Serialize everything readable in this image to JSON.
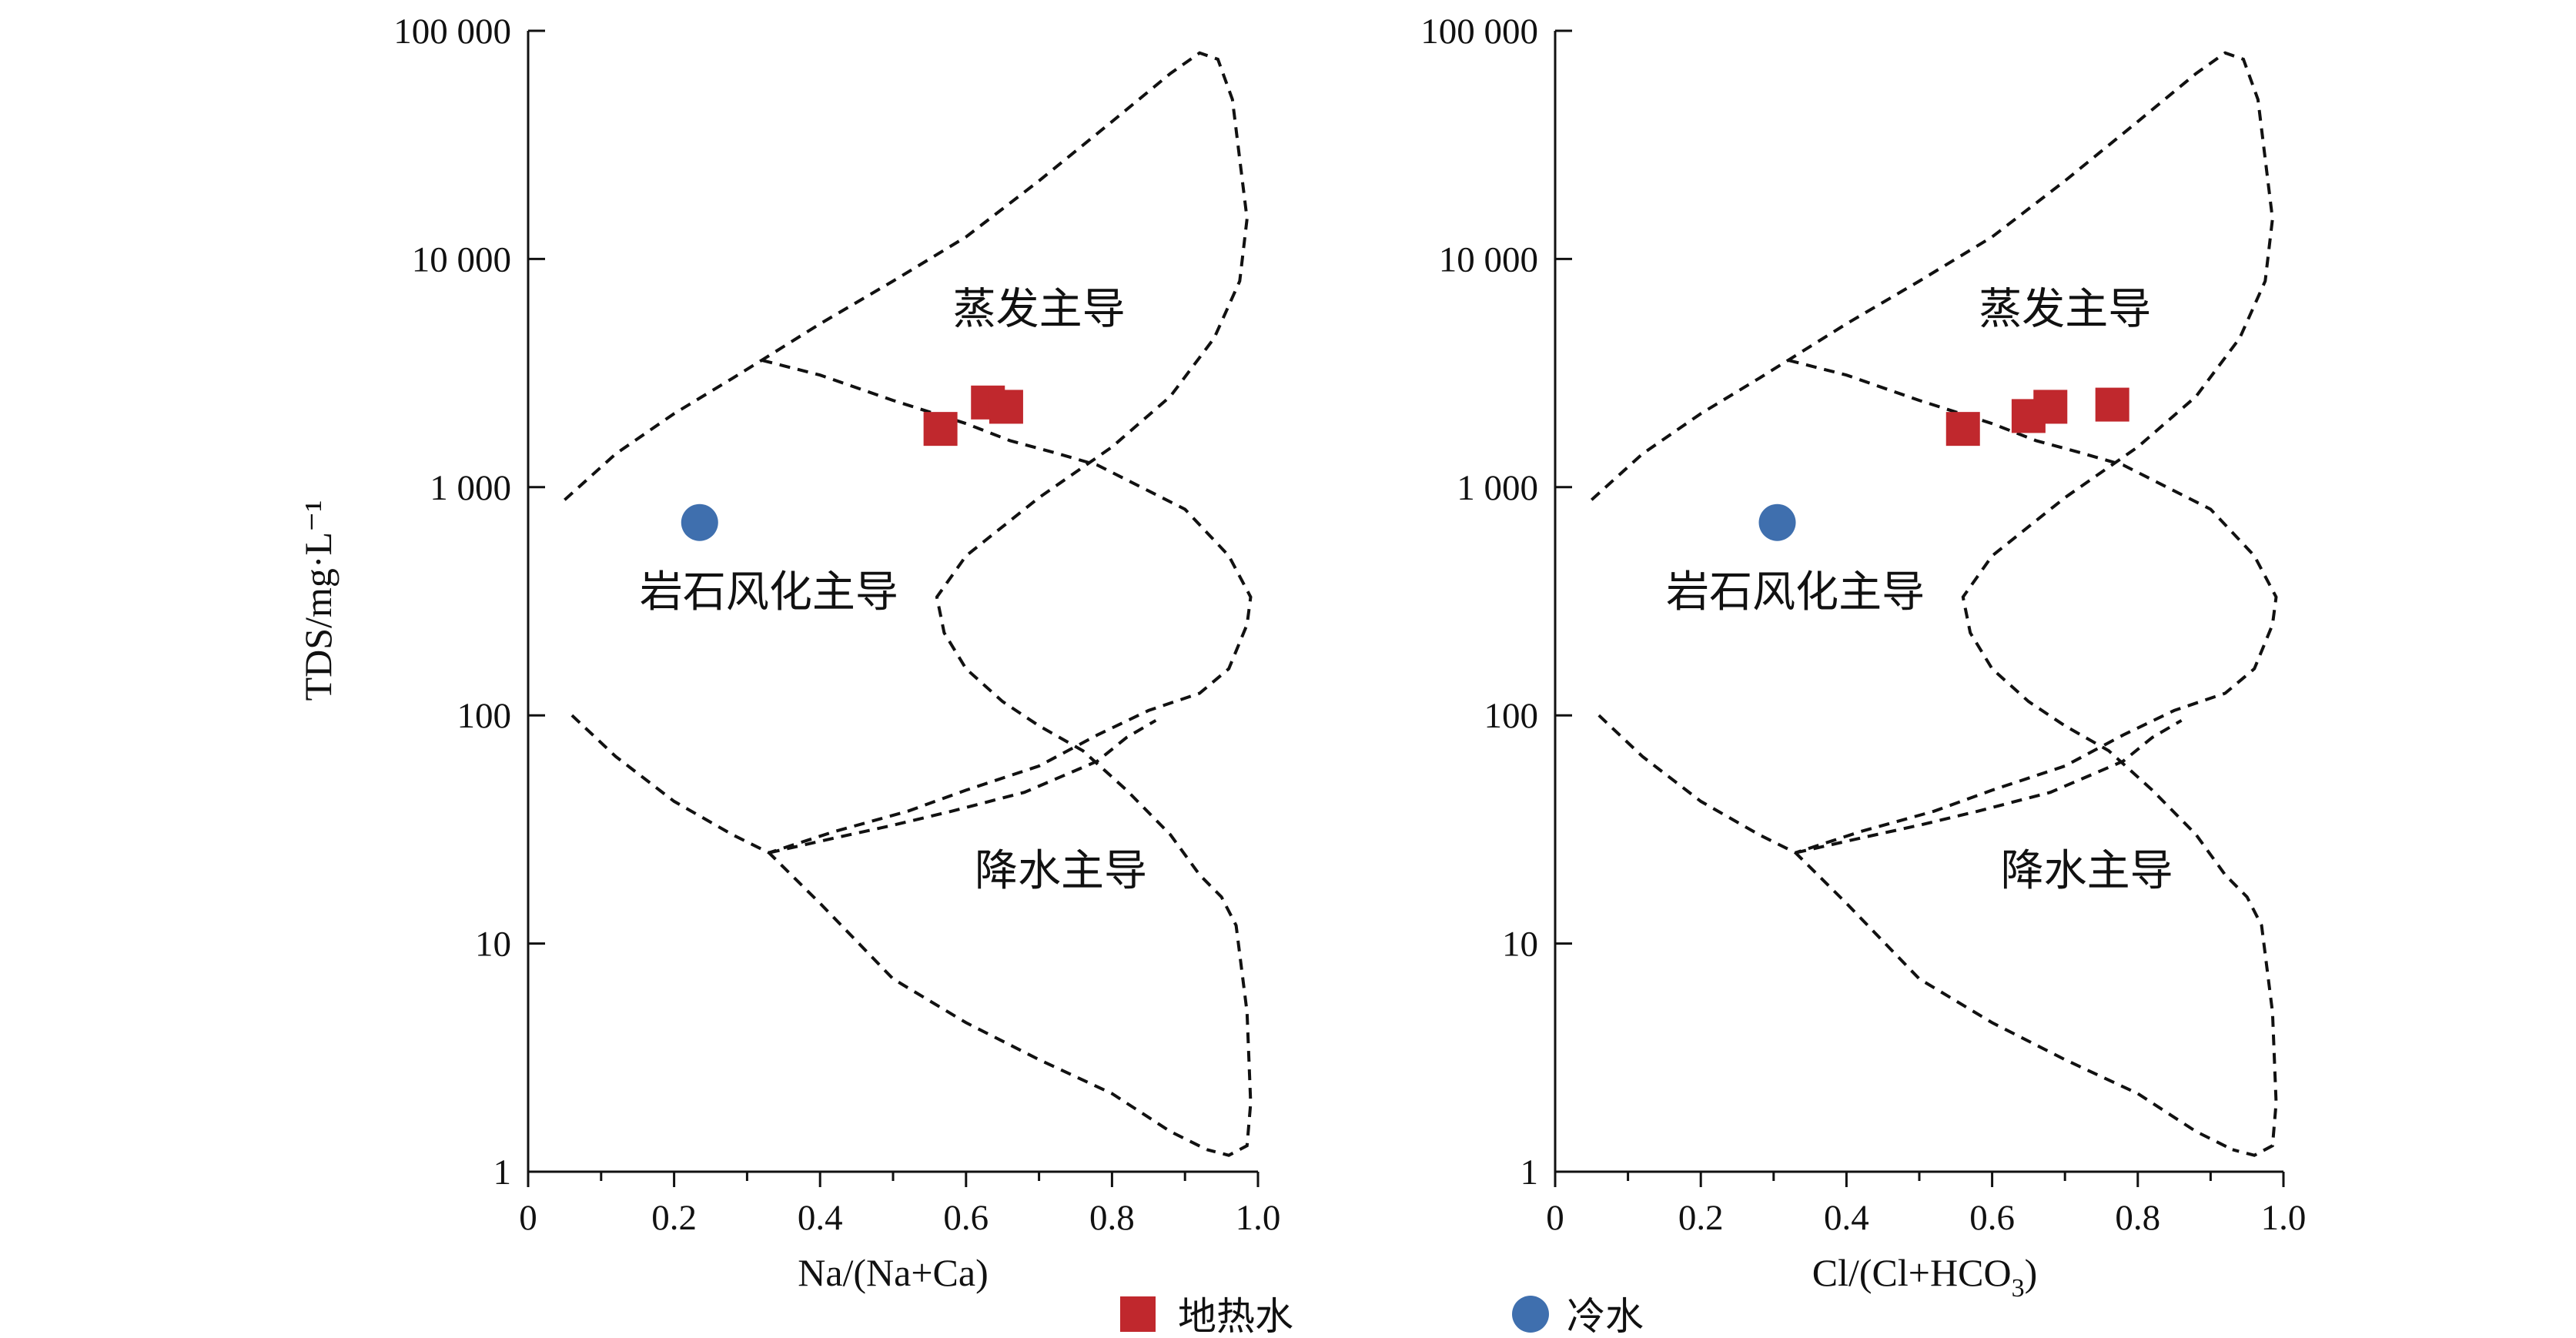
{
  "chart_data": [
    {
      "type": "scatter",
      "xlabel": "Na/(Na+Ca)",
      "ylabel": "TDS/mg·L⁻¹",
      "xlim": [
        0,
        1.0
      ],
      "ylim": [
        1,
        100000
      ],
      "yscale": "log",
      "xticks": [
        "0",
        "0.2",
        "0.4",
        "0.6",
        "0.8",
        "1.0"
      ],
      "yticks": [
        "1",
        "10",
        "100",
        "1 000",
        "10 000",
        "100 000"
      ],
      "grid": false,
      "regions": [
        "蒸发主导",
        "岩石风化主导",
        "降水主导"
      ],
      "series": [
        {
          "name": "地热水",
          "points": [
            [
              0.565,
              1800
            ],
            [
              0.63,
              2350
            ],
            [
              0.655,
              2250
            ]
          ]
        },
        {
          "name": "冷水",
          "points": [
            [
              0.235,
              700
            ]
          ]
        }
      ]
    },
    {
      "type": "scatter",
      "xlabel_main": "Cl/(Cl+HCO",
      "xlabel_sub": "3",
      "xlabel_end": ")",
      "xlim": [
        0,
        1.0
      ],
      "ylim": [
        1,
        100000
      ],
      "yscale": "log",
      "xticks": [
        "0",
        "0.2",
        "0.4",
        "0.6",
        "0.8",
        "1.0"
      ],
      "yticks": [
        "1",
        "10",
        "100",
        "1 000",
        "10 000",
        "100 000"
      ],
      "grid": false,
      "regions": [
        "蒸发主导",
        "岩石风化主导",
        "降水主导"
      ],
      "series": [
        {
          "name": "地热水",
          "points": [
            [
              0.56,
              1800
            ],
            [
              0.65,
              2050
            ],
            [
              0.68,
              2250
            ],
            [
              0.765,
              2300
            ]
          ]
        },
        {
          "name": "冷水",
          "points": [
            [
              0.305,
              700
            ]
          ]
        }
      ]
    }
  ],
  "legend": {
    "items": [
      {
        "label": "地热水",
        "marker": "square",
        "color": "#c0282d"
      },
      {
        "label": "冷水",
        "marker": "circle",
        "color": "#3f6fae"
      }
    ]
  },
  "colors": {
    "geothermal": "#c0282d",
    "cold": "#3f6fae",
    "axis": "#111111"
  }
}
